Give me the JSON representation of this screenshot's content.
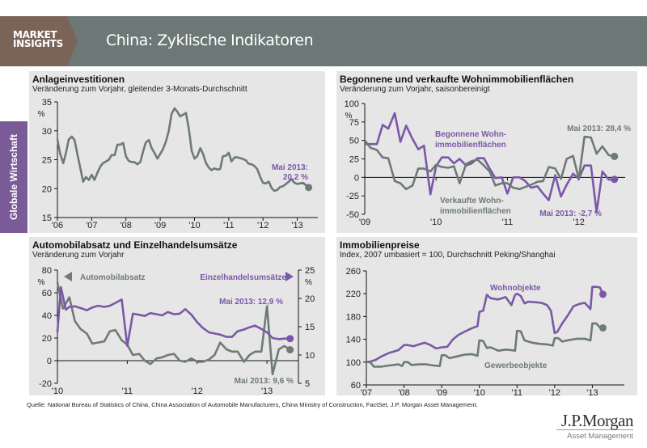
{
  "header": {
    "brand_line1": "MARKET",
    "brand_line2": "INSIGHTS",
    "title": "China: Zyklische Indikatoren"
  },
  "sidebar": {
    "label": "Globale Wirtschaft"
  },
  "colors": {
    "gray_series": "#6e7a76",
    "purple_series": "#7b58a6",
    "header_bg": "#6b7876",
    "brand_bg": "#7a6357",
    "panel_bg": "#e6e6e6"
  },
  "source": "Quelle: National Bureau of Statistics of China, China Association of Automobile Manufacturers, China Ministry of Construction, FactSet, J.P. Morgan Asset Management.",
  "logo": {
    "name": "J.P.Morgan",
    "sub": "Asset Management"
  },
  "chart_data": [
    {
      "id": "fai",
      "type": "line",
      "title": "Anlageinvestitionen",
      "subtitle": "Veränderung zum Vorjahr, gleitender 3-Monats-Durchschnitt",
      "ylabel": "%",
      "ylim": [
        15,
        35
      ],
      "yticks": [
        15,
        20,
        25,
        30,
        35
      ],
      "xlim": [
        2006,
        2013.6
      ],
      "xticks": [
        {
          "v": 2006,
          "l": "'06"
        },
        {
          "v": 2007,
          "l": "'07"
        },
        {
          "v": 2008,
          "l": "'08"
        },
        {
          "v": 2009,
          "l": "'09"
        },
        {
          "v": 2010,
          "l": "'10"
        },
        {
          "v": 2011,
          "l": "'11"
        },
        {
          "v": 2012,
          "l": "'12"
        },
        {
          "v": 2013,
          "l": "'13"
        }
      ],
      "series": [
        {
          "name": "Anlageinvestitionen",
          "color": "gray",
          "axis": "left",
          "x": [
            2006.0,
            2006.08,
            2006.17,
            2006.25,
            2006.33,
            2006.42,
            2006.5,
            2006.58,
            2006.67,
            2006.75,
            2006.83,
            2006.92,
            2007.0,
            2007.08,
            2007.17,
            2007.25,
            2007.33,
            2007.42,
            2007.5,
            2007.58,
            2007.67,
            2007.75,
            2007.83,
            2007.92,
            2008.0,
            2008.08,
            2008.17,
            2008.25,
            2008.33,
            2008.42,
            2008.5,
            2008.58,
            2008.67,
            2008.75,
            2008.83,
            2008.92,
            2009.0,
            2009.08,
            2009.17,
            2009.25,
            2009.33,
            2009.42,
            2009.5,
            2009.58,
            2009.67,
            2009.75,
            2009.83,
            2009.92,
            2010.0,
            2010.08,
            2010.17,
            2010.25,
            2010.33,
            2010.42,
            2010.5,
            2010.58,
            2010.67,
            2010.75,
            2010.83,
            2010.92,
            2011.0,
            2011.08,
            2011.17,
            2011.25,
            2011.33,
            2011.42,
            2011.5,
            2011.58,
            2011.67,
            2011.75,
            2011.83,
            2011.92,
            2012.0,
            2012.08,
            2012.17,
            2012.25,
            2012.33,
            2012.42,
            2012.5,
            2012.58,
            2012.67,
            2012.75,
            2012.83,
            2012.92,
            2013.0,
            2013.08,
            2013.17,
            2013.25,
            2013.33
          ],
          "values": [
            28.5,
            26.0,
            24.4,
            26.2,
            28.5,
            29.0,
            28.4,
            26.0,
            23.5,
            21.2,
            22.0,
            21.5,
            22.4,
            21.5,
            22.8,
            23.8,
            24.4,
            24.7,
            25.0,
            25.8,
            25.8,
            27.6,
            27.6,
            27.9,
            25.6,
            24.8,
            24.6,
            24.6,
            24.2,
            24.6,
            26.4,
            28.0,
            28.4,
            27.0,
            26.2,
            25.2,
            26.0,
            26.8,
            28.2,
            30.0,
            32.9,
            33.9,
            33.3,
            32.5,
            32.8,
            33.1,
            30.5,
            26.5,
            25.2,
            25.6,
            27.0,
            26.0,
            24.5,
            23.6,
            23.2,
            23.5,
            23.3,
            23.4,
            25.6,
            25.7,
            26.2,
            24.7,
            25.4,
            25.4,
            25.3,
            25.1,
            24.9,
            24.3,
            24.2,
            23.9,
            23.4,
            22.0,
            21.0,
            20.9,
            21.2,
            20.1,
            19.6,
            19.8,
            20.3,
            20.4,
            20.8,
            21.2,
            21.6,
            21.0,
            20.8,
            20.9,
            21.0,
            20.6,
            20.2
          ]
        }
      ],
      "annotations": [
        {
          "text": "Mai 2013:",
          "text2": "20,2 %",
          "color": "purple"
        }
      ]
    },
    {
      "id": "floor",
      "type": "line",
      "title": "Begonnene und verkaufte Wohnimmobilienflächen",
      "subtitle": "Veränderung zum Vorjahr, saisonbereinigt",
      "ylabel": "%",
      "ylim": [
        -50,
        100
      ],
      "yticks": [
        -50,
        -25,
        0,
        25,
        50,
        75,
        100
      ],
      "xlim": [
        2009,
        2012.65
      ],
      "xticks": [
        {
          "v": 2009,
          "l": "'09"
        },
        {
          "v": 2010,
          "l": "'10"
        },
        {
          "v": 2011,
          "l": "'11"
        },
        {
          "v": 2012,
          "l": "'12"
        }
      ],
      "series": [
        {
          "name": "Begonnene Wohnimmobilienflächen",
          "label1": "Begonnene Wohn-",
          "label2": "immobilienflächen",
          "color": "purple",
          "axis": "left",
          "x": [
            2009.0,
            2009.08,
            2009.17,
            2009.25,
            2009.33,
            2009.42,
            2009.5,
            2009.58,
            2009.67,
            2009.75,
            2009.83,
            2009.92,
            2010.0,
            2010.08,
            2010.17,
            2010.25,
            2010.33,
            2010.42,
            2010.5,
            2010.58,
            2010.67,
            2010.75,
            2010.83,
            2010.92,
            2011.0,
            2011.08,
            2011.17,
            2011.25,
            2011.33,
            2011.42,
            2011.5,
            2011.58,
            2011.67,
            2011.75,
            2011.83,
            2011.92,
            2012.0,
            2012.08,
            2012.17,
            2012.25,
            2012.33,
            2012.42,
            2012.5
          ],
          "values": [
            45,
            45,
            45,
            71,
            66,
            87,
            48,
            70,
            52,
            38,
            43,
            -23,
            15,
            27,
            27,
            19,
            25,
            16,
            19,
            26,
            26,
            12,
            -1,
            0,
            -22,
            0,
            0,
            -5,
            -14,
            -12,
            -22,
            -31,
            3,
            -26,
            -10,
            5,
            -2,
            16,
            16,
            -47,
            8,
            -3,
            -2.7
          ]
        },
        {
          "name": "Verkaufte Wohnimmobilienflächen",
          "label1": "Verkaufte Wohn-",
          "label2": "immobilienflächen",
          "color": "gray",
          "axis": "left",
          "x": [
            2009.0,
            2009.08,
            2009.17,
            2009.25,
            2009.33,
            2009.42,
            2009.5,
            2009.58,
            2009.67,
            2009.75,
            2009.83,
            2009.92,
            2010.0,
            2010.08,
            2010.17,
            2010.25,
            2010.33,
            2010.42,
            2010.5,
            2010.58,
            2010.67,
            2010.75,
            2010.83,
            2010.92,
            2011.0,
            2011.08,
            2011.17,
            2011.25,
            2011.33,
            2011.42,
            2011.5,
            2011.58,
            2011.67,
            2011.75,
            2011.83,
            2011.92,
            2012.0,
            2012.08,
            2012.17,
            2012.25,
            2012.33,
            2012.42,
            2012.5
          ],
          "values": [
            50,
            40,
            37,
            27,
            26,
            -5,
            -8,
            -16,
            -11,
            12,
            12,
            8,
            17,
            14,
            13,
            15,
            -8,
            18,
            22,
            24,
            16,
            8,
            -11,
            -8,
            -8,
            -14,
            -16,
            -13,
            -10,
            -6,
            -5,
            14,
            12,
            -2,
            25,
            29,
            -2,
            55,
            54,
            32,
            42,
            30,
            28.4
          ]
        }
      ],
      "annotations": [
        {
          "text": "Mai 2013: 28,4 %",
          "color": "gray"
        },
        {
          "text": "Mai 2013: -2,7 %",
          "color": "purple"
        }
      ]
    },
    {
      "id": "retail",
      "type": "line",
      "title": "Automobilabsatz und Einzelhandelsumsätze",
      "subtitle": "Veränderung zum Vorjahr",
      "ylabel": "%",
      "y2label": "%",
      "ylim": [
        -20,
        80
      ],
      "yticks": [
        -20,
        0,
        20,
        40,
        60,
        80
      ],
      "y2lim": [
        5,
        25
      ],
      "y2ticks": [
        5,
        10,
        15,
        20,
        25
      ],
      "xlim": [
        2010,
        2013.45
      ],
      "xticks": [
        {
          "v": 2010,
          "l": "'10"
        },
        {
          "v": 2011,
          "l": "'11"
        },
        {
          "v": 2012,
          "l": "'12"
        },
        {
          "v": 2013,
          "l": "'13"
        }
      ],
      "series": [
        {
          "name": "Automobilabsatz",
          "color": "gray",
          "axis": "left",
          "x": [
            2010.0,
            2010.08,
            2010.17,
            2010.25,
            2010.33,
            2010.42,
            2010.5,
            2010.58,
            2010.67,
            2010.75,
            2010.83,
            2010.92,
            2011.0,
            2011.08,
            2011.17,
            2011.25,
            2011.33,
            2011.42,
            2011.5,
            2011.58,
            2011.67,
            2011.75,
            2011.83,
            2011.92,
            2012.0,
            2012.08,
            2012.17,
            2012.25,
            2012.33,
            2012.42,
            2012.5,
            2012.58,
            2012.67,
            2012.75,
            2012.83,
            2012.92,
            2013.0,
            2013.08,
            2013.17,
            2013.25,
            2013.33
          ],
          "values": [
            69,
            46,
            56,
            35,
            28,
            24,
            15,
            16,
            17,
            26,
            27,
            18,
            14,
            5,
            6,
            0,
            -3,
            2,
            3,
            5,
            6,
            0,
            -1,
            2,
            -1,
            -1,
            1,
            5,
            16,
            10,
            8,
            8,
            -1,
            5,
            8,
            8,
            48,
            -12,
            10,
            13,
            9.6
          ]
        },
        {
          "name": "Einzelhandelsumsätze",
          "color": "purple",
          "axis": "right",
          "x": [
            2010.0,
            2010.05,
            2010.12,
            2010.17,
            2010.25,
            2010.33,
            2010.42,
            2010.5,
            2010.58,
            2010.67,
            2010.75,
            2010.83,
            2010.92,
            2011.0,
            2011.08,
            2011.17,
            2011.25,
            2011.33,
            2011.42,
            2011.5,
            2011.58,
            2011.67,
            2011.75,
            2011.83,
            2011.92,
            2012.0,
            2012.08,
            2012.17,
            2012.25,
            2012.33,
            2012.42,
            2012.5,
            2012.58,
            2012.67,
            2012.75,
            2012.83,
            2012.92,
            2013.0,
            2013.08,
            2013.17,
            2013.25,
            2013.33
          ],
          "values": [
            14,
            22,
            18,
            18.5,
            18.6,
            18.3,
            17.9,
            18.4,
            18.7,
            18.5,
            18.7,
            19.2,
            19.8,
            11.6,
            17.3,
            17.1,
            16.9,
            17.4,
            17.2,
            17.0,
            17.6,
            17.2,
            17.3,
            18.1,
            17.1,
            15.8,
            14.8,
            14.0,
            13.8,
            13.6,
            13.2,
            13.2,
            14.2,
            14.5,
            14.9,
            15.2,
            14.6,
            14.0,
            13.0,
            12.8,
            12.9,
            12.9
          ]
        }
      ],
      "legend": [
        {
          "text": "Automobilabsatz",
          "marker": "left-triangle",
          "color": "gray"
        },
        {
          "text": "Einzelhandelsumsätze",
          "marker": "right-triangle",
          "color": "purple"
        }
      ],
      "annotations": [
        {
          "text": "Mai 2013: 12,9 %",
          "color": "purple"
        },
        {
          "text": "Mai 2013: 9,6 %",
          "color": "gray"
        }
      ]
    },
    {
      "id": "prices",
      "type": "line",
      "title": "Immobilienpreise",
      "subtitle": "Index, 2007 umbasiert = 100, Durchschnitt Peking/Shanghai",
      "ylim": [
        60,
        260
      ],
      "yticks": [
        60,
        100,
        140,
        180,
        220,
        260
      ],
      "xlim": [
        2007,
        2013.85
      ],
      "xticks": [
        {
          "v": 2007,
          "l": "'07"
        },
        {
          "v": 2008,
          "l": "'08"
        },
        {
          "v": 2009,
          "l": "'09"
        },
        {
          "v": 2010,
          "l": "'10"
        },
        {
          "v": 2011,
          "l": "'11"
        },
        {
          "v": 2012,
          "l": "'12"
        },
        {
          "v": 2013,
          "l": "'13"
        }
      ],
      "series": [
        {
          "name": "Wohnobjekte",
          "color": "purple",
          "axis": "left",
          "x": [
            2007.0,
            2007.1,
            2007.25,
            2007.4,
            2007.6,
            2007.85,
            2008.0,
            2008.1,
            2008.25,
            2008.4,
            2008.55,
            2008.7,
            2008.85,
            2009.0,
            2009.15,
            2009.3,
            2009.45,
            2009.6,
            2009.75,
            2009.9,
            2009.95,
            2010.0,
            2010.1,
            2010.2,
            2010.3,
            2010.5,
            2010.7,
            2010.85,
            2010.95,
            2011.0,
            2011.1,
            2011.2,
            2011.3,
            2011.5,
            2011.65,
            2011.8,
            2011.9,
            2012.0,
            2012.07,
            2012.2,
            2012.35,
            2012.5,
            2012.65,
            2012.8,
            2012.95,
            2013.0,
            2013.1,
            2013.2,
            2013.28
          ],
          "values": [
            100,
            101,
            104,
            110,
            116,
            121,
            130,
            130,
            128,
            131,
            134,
            130,
            124,
            126,
            127,
            140,
            148,
            153,
            158,
            162,
            163,
            188,
            190,
            218,
            212,
            210,
            214,
            200,
            218,
            220,
            216,
            203,
            206,
            205,
            204,
            200,
            190,
            151,
            153,
            168,
            182,
            198,
            202,
            204,
            193,
            232,
            232,
            231,
            219
          ]
        },
        {
          "name": "Gewerbeobjekte",
          "color": "gray",
          "axis": "left",
          "x": [
            2007.0,
            2007.1,
            2007.2,
            2007.4,
            2007.6,
            2007.85,
            2007.95,
            2008.0,
            2008.1,
            2008.2,
            2008.4,
            2008.6,
            2008.8,
            2008.95,
            2009.0,
            2009.1,
            2009.2,
            2009.4,
            2009.6,
            2009.8,
            2009.95,
            2010.0,
            2010.1,
            2010.2,
            2010.3,
            2010.5,
            2010.7,
            2010.85,
            2010.95,
            2011.0,
            2011.1,
            2011.2,
            2011.4,
            2011.6,
            2011.8,
            2011.95,
            2012.0,
            2012.1,
            2012.2,
            2012.4,
            2012.6,
            2012.8,
            2012.95,
            2013.0,
            2013.1,
            2013.2,
            2013.28
          ],
          "values": [
            100,
            100,
            92,
            92,
            94,
            96,
            93,
            100,
            100,
            95,
            96,
            96,
            94,
            93,
            112,
            112,
            107,
            110,
            113,
            114,
            111,
            138,
            137,
            125,
            126,
            120,
            122,
            121,
            120,
            155,
            154,
            138,
            134,
            132,
            131,
            129,
            142,
            142,
            136,
            139,
            141,
            141,
            138,
            168,
            168,
            161,
            160
          ]
        }
      ],
      "annotations": []
    }
  ]
}
